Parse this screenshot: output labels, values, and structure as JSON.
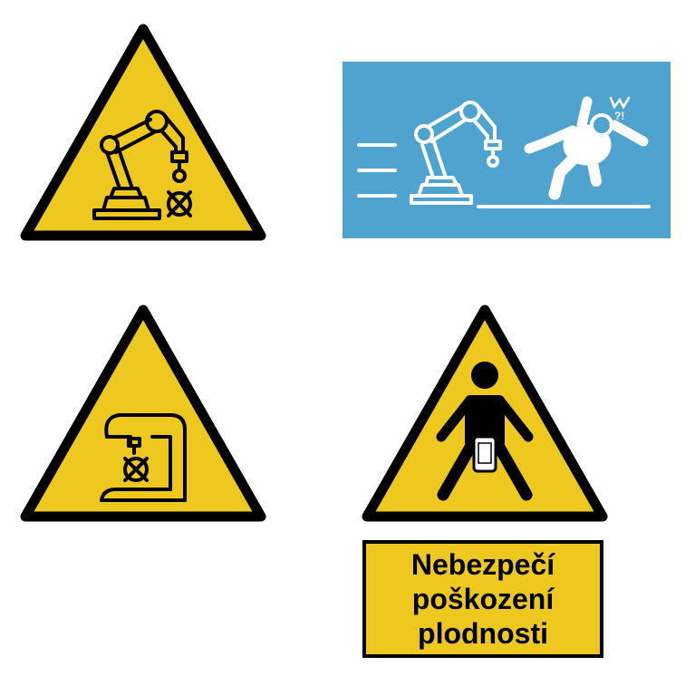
{
  "colors": {
    "warning_yellow": "#eec81f",
    "outline": "#000000",
    "panel_blue": "#4fa3cf",
    "panel_ink": "#ffffff"
  },
  "signs": [
    {
      "icon": "robotic-arm-icon"
    },
    {
      "icon": "robot-collision-fall-icon"
    },
    {
      "icon": "stand-mixer-icon"
    },
    {
      "icon": "person-phone-icon"
    }
  ],
  "label": {
    "lines": [
      "Nebezpečí",
      "poškození",
      "plodnosti"
    ]
  }
}
